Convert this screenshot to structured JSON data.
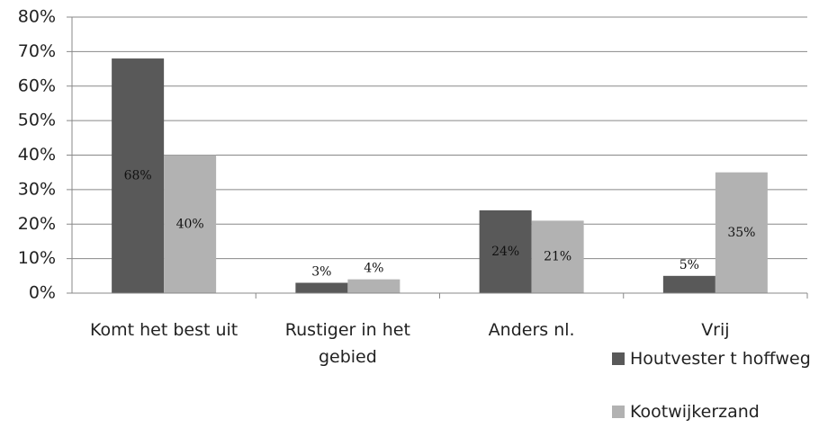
{
  "chart_data": {
    "type": "bar",
    "categories": [
      "Komt het best uit",
      "Rustiger in het gebied",
      "Anders nl.",
      "Vrij"
    ],
    "series": [
      {
        "name": "Houtvester t hoffweg",
        "color": "#595959",
        "values": [
          68,
          3,
          24,
          5
        ],
        "value_labels": [
          "68%",
          "3%",
          "24%",
          "5%"
        ]
      },
      {
        "name": "Kootwijkerzand",
        "color": "#b2b2b2",
        "values": [
          40,
          4,
          21,
          35
        ],
        "value_labels": [
          "40%",
          "4%",
          "21%",
          "35%"
        ]
      }
    ],
    "ylim": [
      0,
      80
    ],
    "yticks": [
      {
        "value": 0,
        "label": "0%"
      },
      {
        "value": 10,
        "label": "10%"
      },
      {
        "value": 20,
        "label": "20%"
      },
      {
        "value": 30,
        "label": "30%"
      },
      {
        "value": 40,
        "label": "40%"
      },
      {
        "value": 50,
        "label": "50%"
      },
      {
        "value": 60,
        "label": "60%"
      },
      {
        "value": 70,
        "label": "70%"
      },
      {
        "value": 80,
        "label": "80%"
      }
    ],
    "grid": true
  }
}
